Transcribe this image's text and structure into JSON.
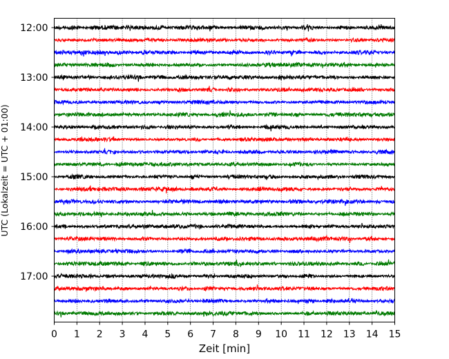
{
  "chart_data": {
    "type": "line",
    "title": "",
    "xlabel": "Zeit  [min]",
    "ylabel": "UTC (Lokalzeit = UTC + 01:00)",
    "xlim": [
      0,
      15
    ],
    "x_ticks": [
      0,
      1,
      2,
      3,
      4,
      5,
      6,
      7,
      8,
      9,
      10,
      11,
      12,
      13,
      14,
      15
    ],
    "y_ticks": [
      "12:00",
      "13:00",
      "14:00",
      "15:00",
      "16:00",
      "17:00"
    ],
    "grid": "vertical dotted",
    "trace_minutes": 15,
    "traces_per_hour": 4,
    "traces": [
      {
        "start": "12:00",
        "color": "#000000"
      },
      {
        "start": "12:15",
        "color": "#ff0000"
      },
      {
        "start": "12:30",
        "color": "#0000ff"
      },
      {
        "start": "12:45",
        "color": "#007a00"
      },
      {
        "start": "13:00",
        "color": "#000000"
      },
      {
        "start": "13:15",
        "color": "#ff0000"
      },
      {
        "start": "13:30",
        "color": "#0000ff"
      },
      {
        "start": "13:45",
        "color": "#007a00"
      },
      {
        "start": "14:00",
        "color": "#000000"
      },
      {
        "start": "14:15",
        "color": "#ff0000"
      },
      {
        "start": "14:30",
        "color": "#0000ff"
      },
      {
        "start": "14:45",
        "color": "#007a00"
      },
      {
        "start": "15:00",
        "color": "#000000"
      },
      {
        "start": "15:15",
        "color": "#ff0000"
      },
      {
        "start": "15:30",
        "color": "#0000ff"
      },
      {
        "start": "15:45",
        "color": "#007a00"
      },
      {
        "start": "16:00",
        "color": "#000000"
      },
      {
        "start": "16:15",
        "color": "#ff0000"
      },
      {
        "start": "16:30",
        "color": "#0000ff"
      },
      {
        "start": "16:45",
        "color": "#007a00"
      },
      {
        "start": "17:00",
        "color": "#000000"
      },
      {
        "start": "17:15",
        "color": "#ff0000"
      },
      {
        "start": "17:30",
        "color": "#0000ff"
      },
      {
        "start": "17:45",
        "color": "#007a00"
      }
    ]
  }
}
